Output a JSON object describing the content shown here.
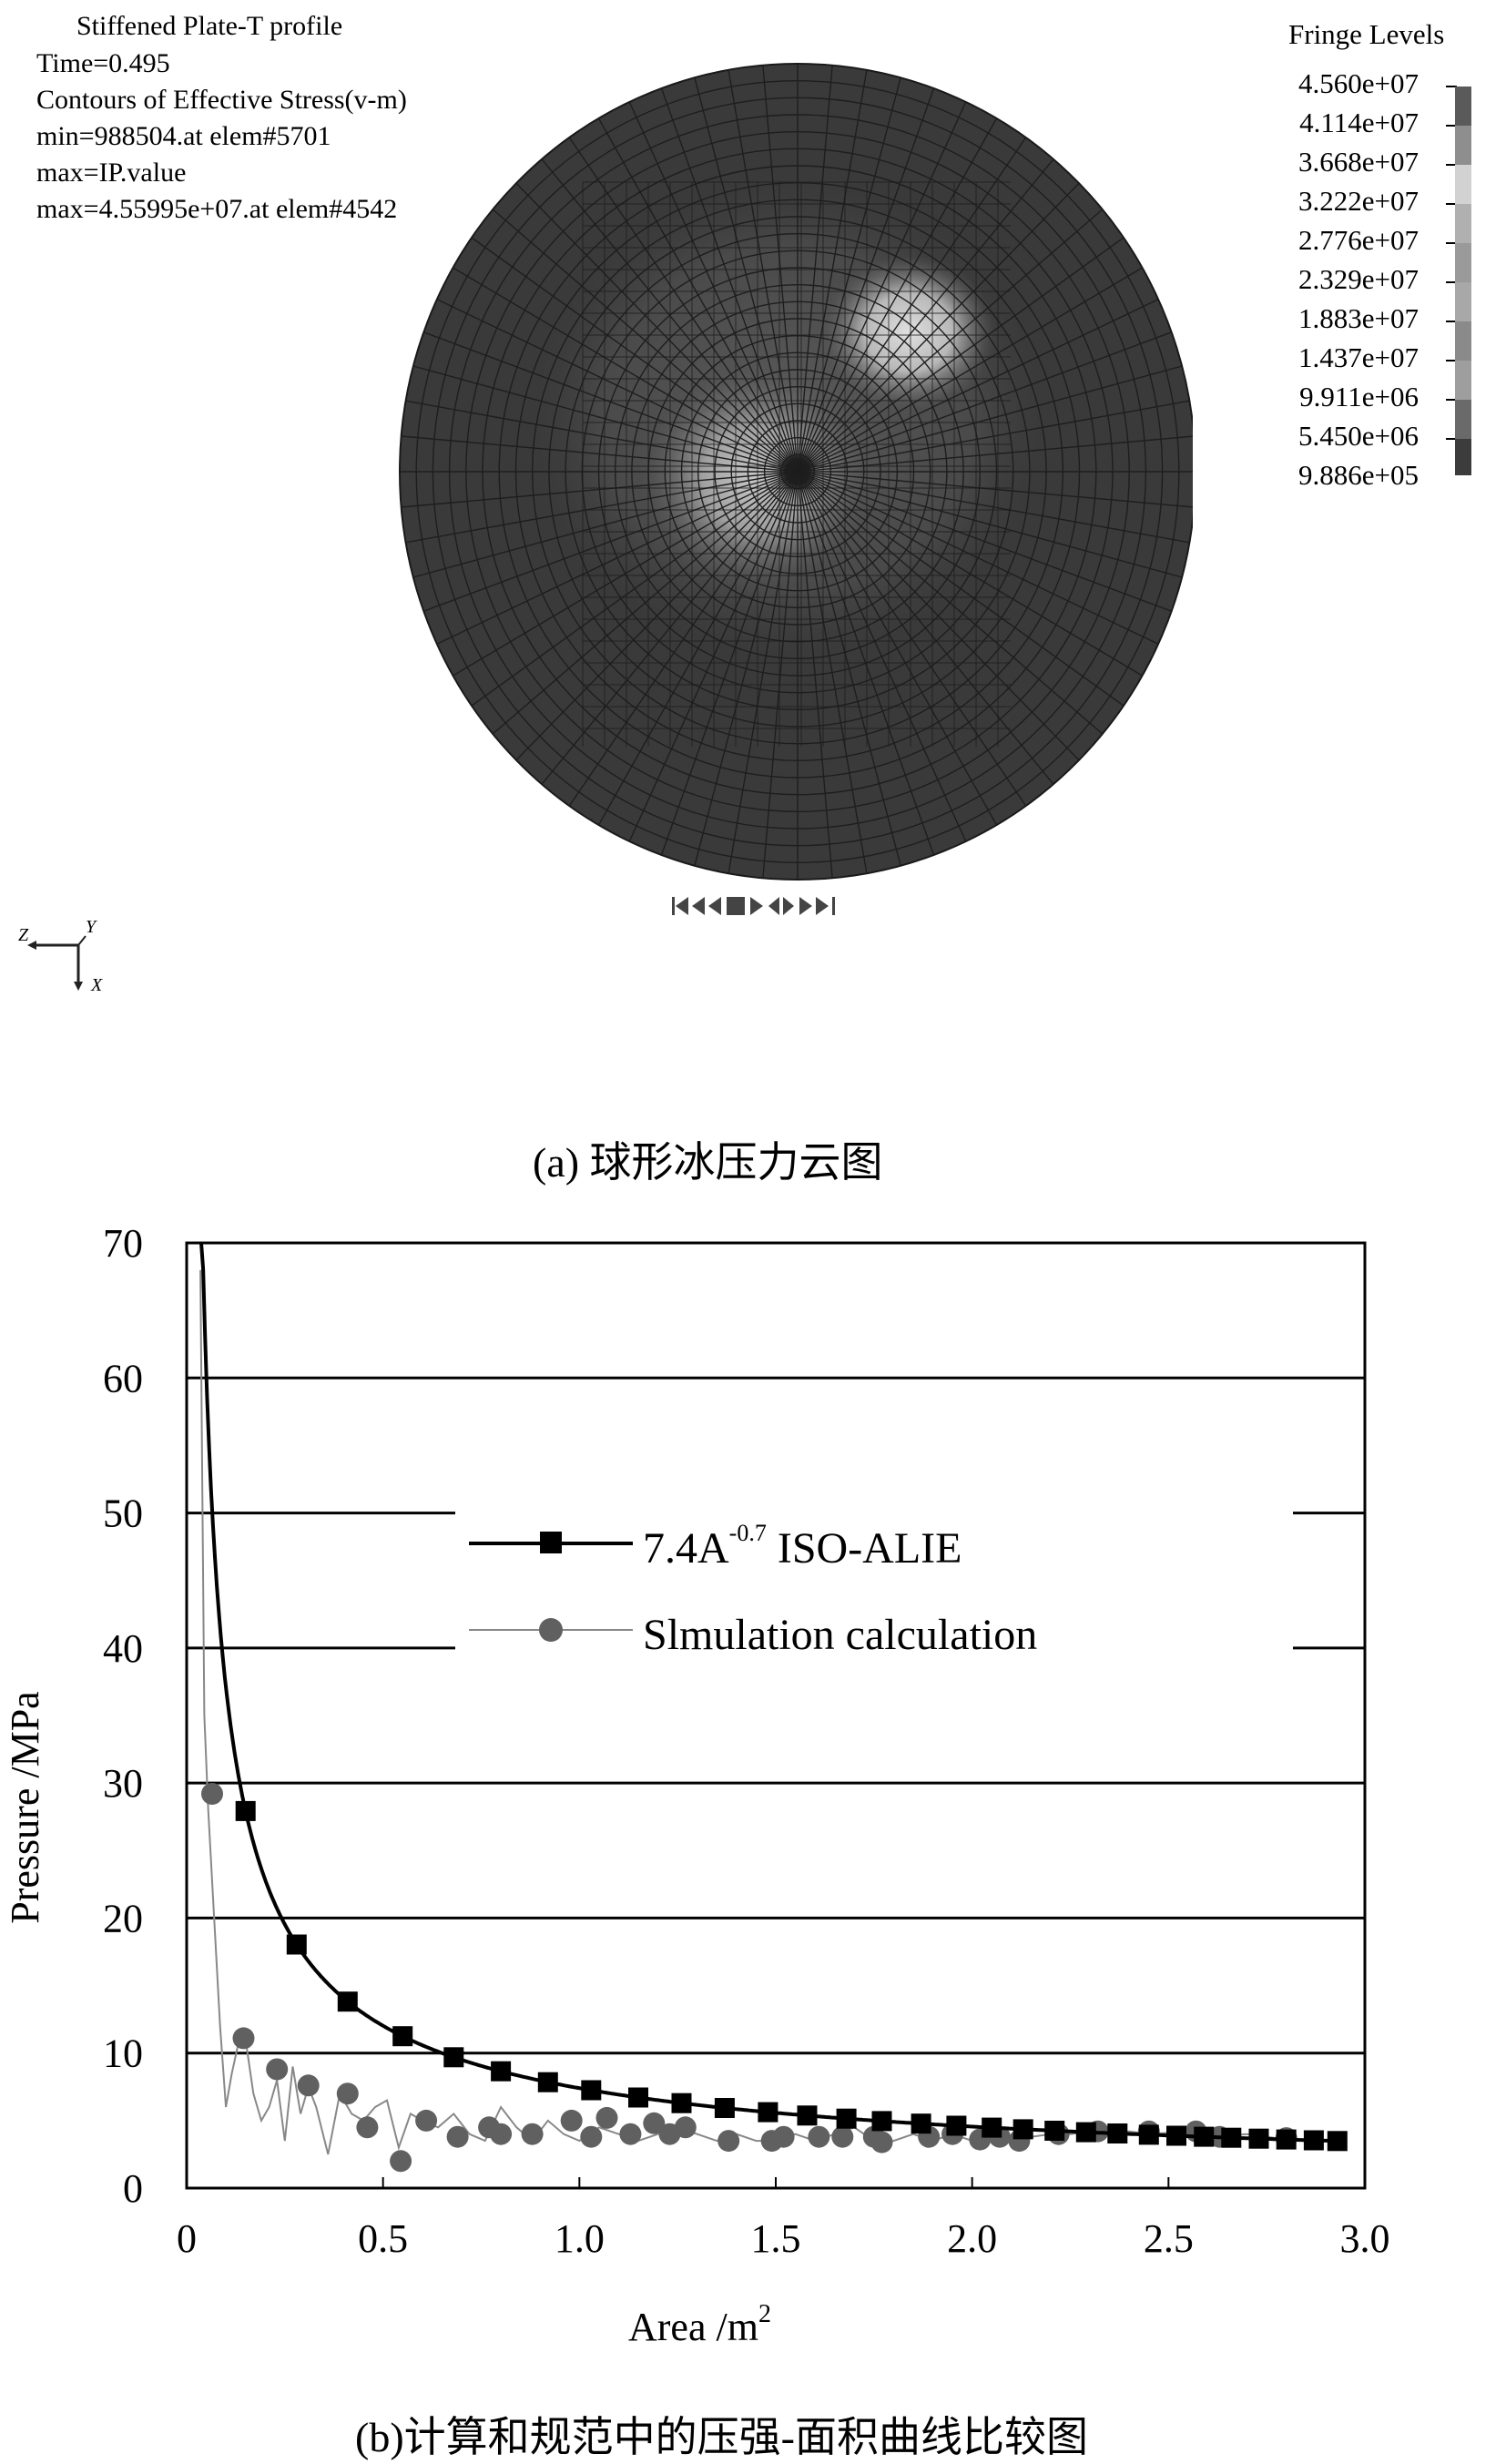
{
  "panel_a": {
    "info_lines": [
      "Stiffened Plate-T profile",
      "Time=0.495",
      "Contours of Effective Stress(v-m)",
      "min=988504.at elem#5701",
      "max=IP.value",
      "max=4.55995e+07.at elem#4542"
    ],
    "fringe_title": "Fringe Levels",
    "fringe_levels": [
      "4.560e+07",
      "4.114e+07",
      "3.668e+07",
      "3.222e+07",
      "2.776e+07",
      "2.329e+07",
      "1.883e+07",
      "1.437e+07",
      "9.911e+06",
      "5.450e+06",
      "9.886e+05"
    ],
    "fringe_colors": [
      "#5a5a5a",
      "#8e8e8e",
      "#d2d2d2",
      "#b0b0b0",
      "#9a9a9a",
      "#a8a8a8",
      "#8a8a8a",
      "#9e9e9e",
      "#6a6a6a",
      "#3c3c3c"
    ],
    "axis_triad": {
      "z": "Z",
      "y": "Y",
      "x": "X"
    },
    "caption": "(a)  球形冰压力云图"
  },
  "chart_data": {
    "type": "line",
    "xlabel": "Area /m",
    "xlabel_sup": "2",
    "ylabel": "Pressure /MPa",
    "xlim": [
      0,
      3.0
    ],
    "ylim": [
      0,
      70
    ],
    "xticks": [
      "0",
      "0.5",
      "1.0",
      "1.5",
      "2.0",
      "2.5",
      "3.0"
    ],
    "yticks": [
      "0",
      "10",
      "20",
      "30",
      "40",
      "50",
      "60",
      "70"
    ],
    "grid": "horizontal",
    "legend_position": "upper-center",
    "series": [
      {
        "name": "7.4A",
        "name_sup": "-0.7",
        "name_suffix": " ISO-ALIE",
        "color": "#000000",
        "marker": "square",
        "curve": {
          "coef": 7.4,
          "exp": -0.7,
          "x_start": 0.037,
          "x_end": 2.95
        },
        "markers_x": [
          0.15,
          0.28,
          0.41,
          0.55,
          0.68,
          0.8,
          0.92,
          1.03,
          1.15,
          1.26,
          1.37,
          1.48,
          1.58,
          1.68,
          1.77,
          1.87,
          1.96,
          2.05,
          2.13,
          2.21,
          2.29,
          2.37,
          2.45,
          2.52,
          2.59,
          2.66,
          2.73,
          2.8,
          2.87,
          2.93
        ]
      },
      {
        "name": "Slmulation calculation",
        "color": "#888888",
        "marker_color": "#606060",
        "marker": "circle",
        "line_x": [
          0.035,
          0.045,
          0.055,
          0.07,
          0.085,
          0.1,
          0.115,
          0.13,
          0.15,
          0.17,
          0.19,
          0.21,
          0.23,
          0.25,
          0.27,
          0.29,
          0.31,
          0.33,
          0.36,
          0.39,
          0.42,
          0.45,
          0.48,
          0.51,
          0.54,
          0.57,
          0.6,
          0.64,
          0.68,
          0.72,
          0.76,
          0.8,
          0.84,
          0.88,
          0.92,
          0.96,
          1.0,
          1.05,
          1.1,
          1.15,
          1.2,
          1.25,
          1.3,
          1.35,
          1.4,
          1.45,
          1.5,
          1.55,
          1.6,
          1.65,
          1.7,
          1.75,
          1.8,
          1.85,
          1.9,
          1.95,
          2.0,
          2.05,
          2.1,
          2.15,
          2.2,
          2.25,
          2.3,
          2.35,
          2.4,
          2.45,
          2.5,
          2.55,
          2.6,
          2.65,
          2.7,
          2.75,
          2.8
        ],
        "line_y": [
          68,
          35,
          28,
          20,
          12,
          6,
          8.5,
          10.5,
          11,
          7,
          5,
          6,
          8,
          3.5,
          9,
          5.5,
          7.5,
          6,
          2.5,
          7,
          5.5,
          5,
          6,
          6.5,
          3,
          5.5,
          5,
          4.5,
          5.5,
          4,
          3.5,
          6,
          4.5,
          3.5,
          5,
          4,
          3.5,
          4.5,
          4,
          3.5,
          4,
          4.5,
          4,
          3.5,
          4,
          3.5,
          3.5,
          4,
          3.5,
          4,
          4.5,
          3.5,
          3.5,
          4,
          3.5,
          4,
          3.5,
          4,
          3.5,
          3.8,
          4,
          4,
          4.2,
          4,
          4.2,
          4,
          4.1,
          4.2,
          4,
          3.9,
          4,
          3.8,
          3.6
        ],
        "markers_x": [
          0.065,
          0.145,
          0.23,
          0.31,
          0.41,
          0.46,
          0.545,
          0.61,
          0.69,
          0.77,
          0.8,
          0.88,
          0.98,
          1.03,
          1.07,
          1.13,
          1.19,
          1.23,
          1.27,
          1.38,
          1.49,
          1.52,
          1.61,
          1.67,
          1.75,
          1.77,
          1.89,
          1.95,
          2.02,
          2.07,
          2.12,
          2.22,
          2.32,
          2.45,
          2.57,
          2.63,
          2.8
        ],
        "markers_y": [
          29.2,
          11.1,
          8.8,
          7.6,
          7.0,
          4.5,
          2.0,
          5.0,
          3.8,
          4.5,
          4.0,
          4.0,
          5.0,
          3.8,
          5.2,
          4.0,
          4.8,
          4.0,
          4.5,
          3.5,
          3.5,
          3.8,
          3.8,
          3.8,
          3.8,
          3.4,
          3.8,
          4.0,
          3.6,
          3.8,
          3.5,
          4.0,
          4.2,
          4.2,
          4.2,
          3.8,
          3.7
        ]
      }
    ]
  },
  "panel_b": {
    "caption": "(b)计算和规范中的压强-面积曲线比较图"
  }
}
